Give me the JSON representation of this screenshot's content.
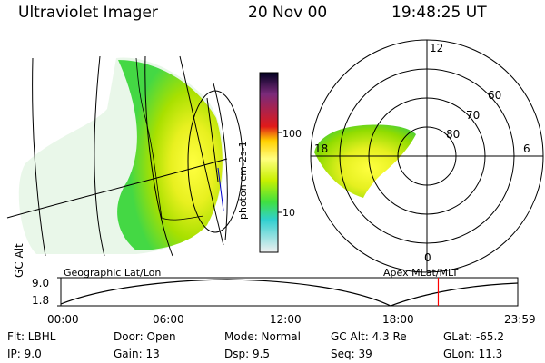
{
  "header": {
    "instrument": "Ultraviolet Imager",
    "date": "20 Nov 00",
    "time": "19:48:25 UT"
  },
  "colorbar": {
    "unit_label": "photon cm-2s-1",
    "ticks": [
      "100",
      "10"
    ]
  },
  "left_panel": {
    "caption": "Geographic Lat/Lon"
  },
  "right_panel": {
    "caption": "Apex MLat/MLT",
    "mlt_labels": [
      "12",
      "18",
      "6",
      "0"
    ],
    "lat_labels": [
      "60",
      "70",
      "80"
    ]
  },
  "altitude_plot": {
    "ylabel": "GC Alt",
    "y_ticks": [
      "9.0",
      "1.8"
    ],
    "x_ticks": [
      "00:00",
      "06:00",
      "12:00",
      "18:00",
      "23:59"
    ],
    "marker_time_fraction": 0.826
  },
  "status": {
    "flt": "Flt: LBHL",
    "ip": "IP:  9.0",
    "door": "Door: Open",
    "gain": "Gain: 13",
    "mode": "Mode: Normal",
    "dsp": "Dsp:    9.5",
    "gc_alt": "GC Alt: 4.3 Re",
    "seq": "Seq: 39",
    "glat": "GLat: -65.2",
    "glon": "GLon:  11.3"
  },
  "colors": {
    "marker": "#ff0000",
    "aurora_bright": "#ffff33",
    "aurora_mid": "#a8e000",
    "aurora_low": "#44d844"
  }
}
